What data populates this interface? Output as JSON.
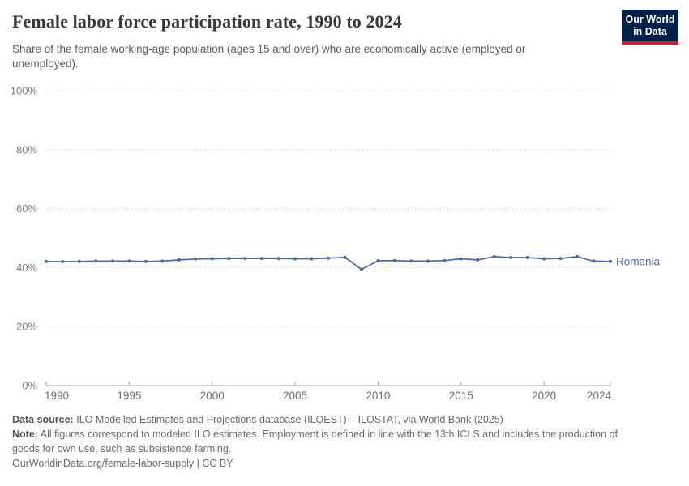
{
  "header": {
    "title": "Female labor force participation rate, 1990 to 2024",
    "subtitle": "Share of the female working-age population (ages 15 and over) who are economically active (employed or unemployed).",
    "logo": {
      "line1": "Our World",
      "line2": "in Data",
      "bg_color": "#002147",
      "bar_color": "#c0262d"
    }
  },
  "chart_data": {
    "type": "line",
    "title": "Female labor force participation rate, 1990 to 2024",
    "xlabel": "",
    "ylabel": "",
    "grid": "horizontal-dashed",
    "legend_position": "end-of-line-label",
    "xlim": [
      1990,
      2024
    ],
    "ylim": [
      0,
      100
    ],
    "x": [
      1990,
      1991,
      1992,
      1993,
      1994,
      1995,
      1996,
      1997,
      1998,
      1999,
      2000,
      2001,
      2002,
      2003,
      2004,
      2005,
      2006,
      2007,
      2008,
      2009,
      2010,
      2011,
      2012,
      2013,
      2014,
      2015,
      2016,
      2017,
      2018,
      2019,
      2020,
      2021,
      2022,
      2023,
      2024
    ],
    "series": [
      {
        "name": "Romania",
        "color": "#4c6a9c",
        "values": [
          42.1,
          42.0,
          42.1,
          42.2,
          42.2,
          42.2,
          42.1,
          42.2,
          42.6,
          42.9,
          43.0,
          43.1,
          43.1,
          43.1,
          43.1,
          43.0,
          43.0,
          43.2,
          43.5,
          39.4,
          42.3,
          42.4,
          42.2,
          42.2,
          42.4,
          43.0,
          42.6,
          43.7,
          43.4,
          43.4,
          43.0,
          43.1,
          43.7,
          42.2,
          42.1
        ]
      }
    ],
    "y_ticks": [
      {
        "value": 0,
        "label": "0%"
      },
      {
        "value": 20,
        "label": "20%"
      },
      {
        "value": 40,
        "label": "40%"
      },
      {
        "value": 60,
        "label": "60%"
      },
      {
        "value": 80,
        "label": "80%"
      },
      {
        "value": 100,
        "label": "100%"
      }
    ],
    "x_ticks": [
      1990,
      1995,
      2000,
      2005,
      2010,
      2015,
      2020,
      2024
    ]
  },
  "footer": {
    "data_source_label": "Data source:",
    "data_source_text": "ILO Modelled Estimates and Projections database (ILOEST) – ILOSTAT, via World Bank (2025)",
    "note_label": "Note:",
    "note_text": "All figures correspond to modeled ILO estimates. Employment is defined in line with the 13th ICLS and includes the production of goods for own use, such as subsistence farming.",
    "url_line": "OurWorldinData.org/female-labor-supply | CC BY"
  },
  "colors": {
    "line": "#4c6a9c",
    "grid": "#dcdcdc",
    "axis": "#a8a8a8",
    "tick_label": "#6f6f6f",
    "y_label": "#838383"
  }
}
